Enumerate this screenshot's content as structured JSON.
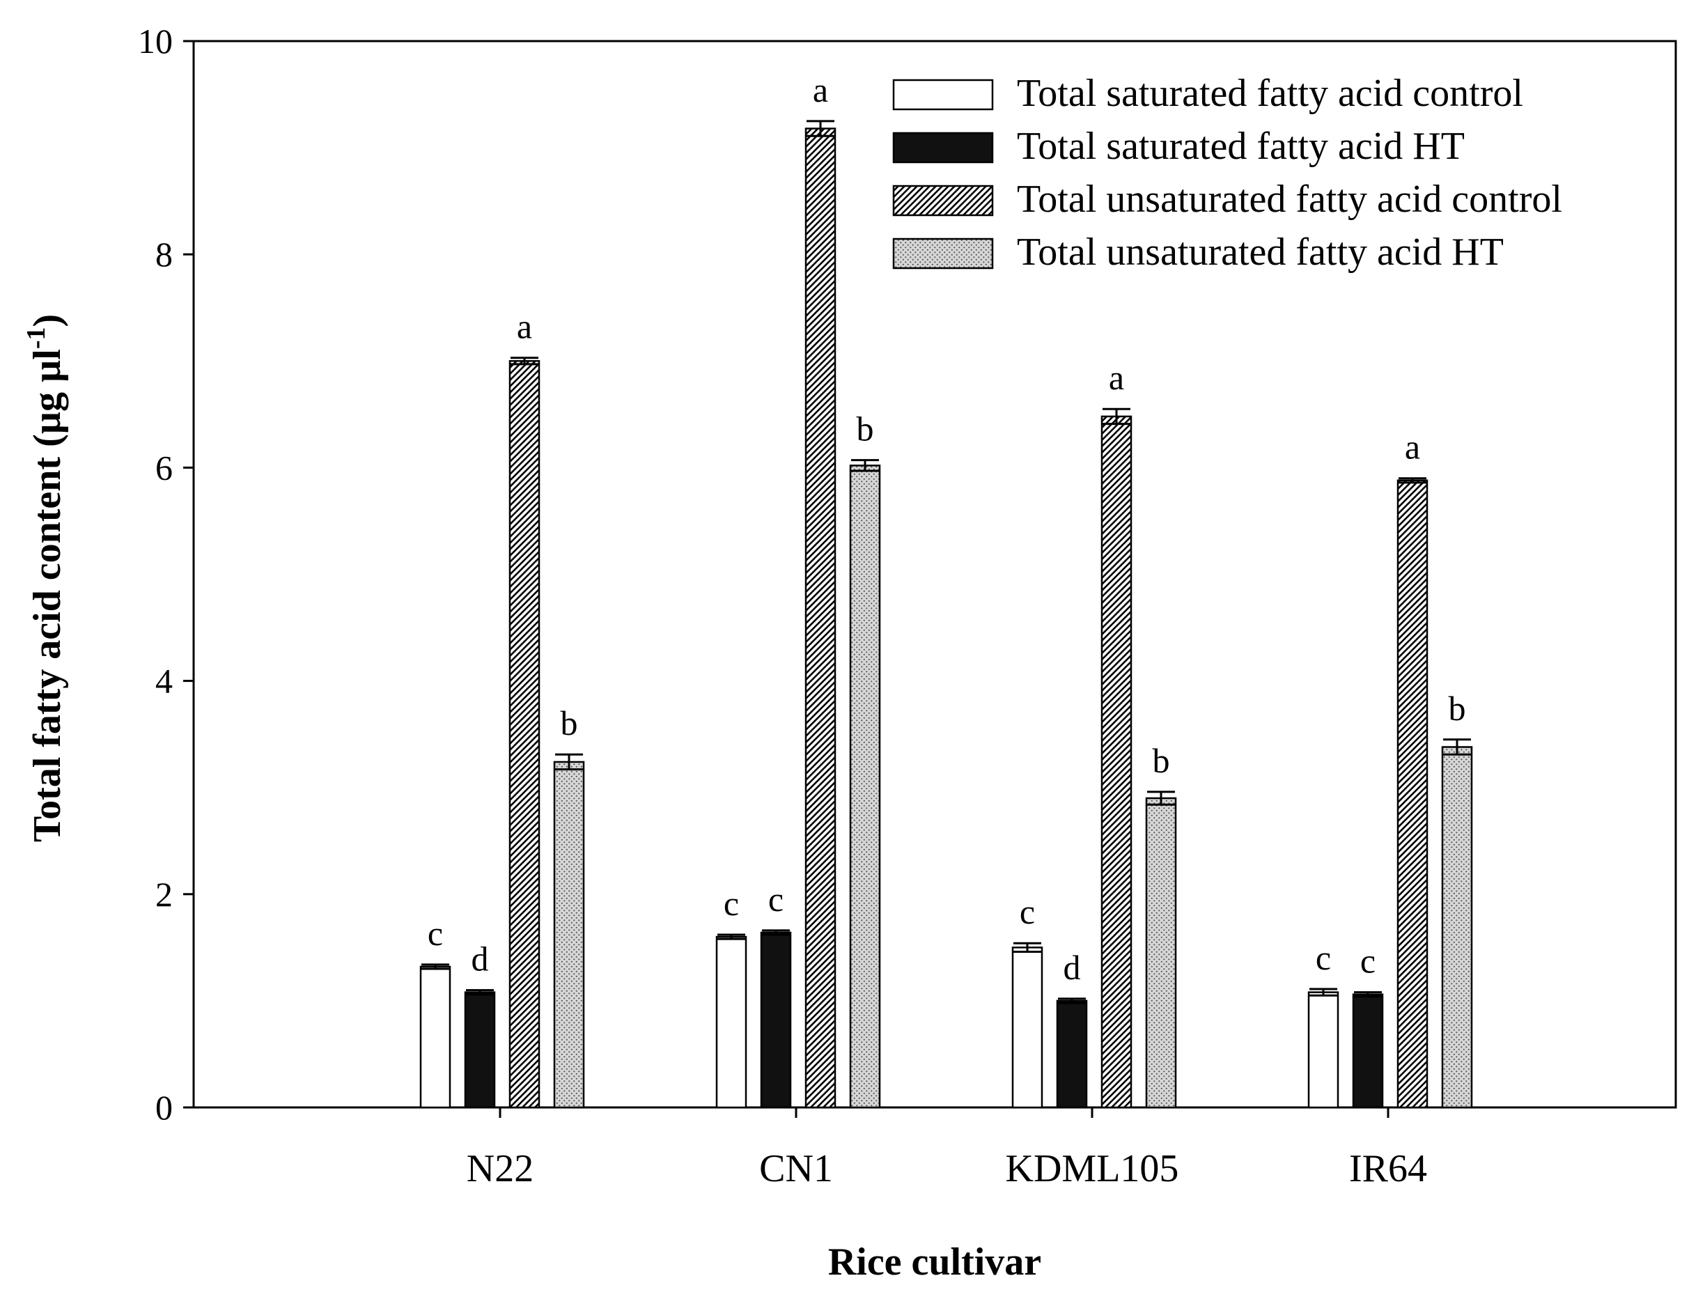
{
  "chart_data": {
    "type": "bar",
    "title": "",
    "xlabel": "Rice cultivar",
    "ylabel_main": "Total fatty acid content (µg µl",
    "ylabel_sup": "-1",
    "ylabel_tail": ")",
    "ylim": [
      0,
      10
    ],
    "yticks": [
      "0",
      "2",
      "4",
      "6",
      "8",
      "10"
    ],
    "categories": [
      "N22",
      "CN1",
      "KDML105",
      "IR64"
    ],
    "legend_position": "top-right",
    "series": [
      {
        "name": "Total saturated fatty acid control",
        "pattern": "white",
        "values": [
          1.32,
          1.6,
          1.5,
          1.08
        ],
        "errors": [
          0.02,
          0.02,
          0.04,
          0.03
        ],
        "letters": [
          "c",
          "c",
          "c",
          "c"
        ]
      },
      {
        "name": "Total saturated fatty acid HT",
        "pattern": "black",
        "values": [
          1.08,
          1.64,
          1.0,
          1.06
        ],
        "errors": [
          0.02,
          0.02,
          0.02,
          0.02
        ],
        "letters": [
          "d",
          "c",
          "d",
          "c"
        ]
      },
      {
        "name": "Total unsaturated fatty acid control",
        "pattern": "hatch",
        "values": [
          7.0,
          9.18,
          6.48,
          5.88
        ],
        "errors": [
          0.03,
          0.07,
          0.07,
          0.02
        ],
        "letters": [
          "a",
          "a",
          "a",
          "a"
        ]
      },
      {
        "name": "Total unsaturated fatty acid HT",
        "pattern": "dots",
        "values": [
          3.24,
          6.02,
          2.9,
          3.38
        ],
        "errors": [
          0.07,
          0.05,
          0.06,
          0.07
        ],
        "letters": [
          "b",
          "b",
          "b",
          "b"
        ]
      }
    ]
  }
}
